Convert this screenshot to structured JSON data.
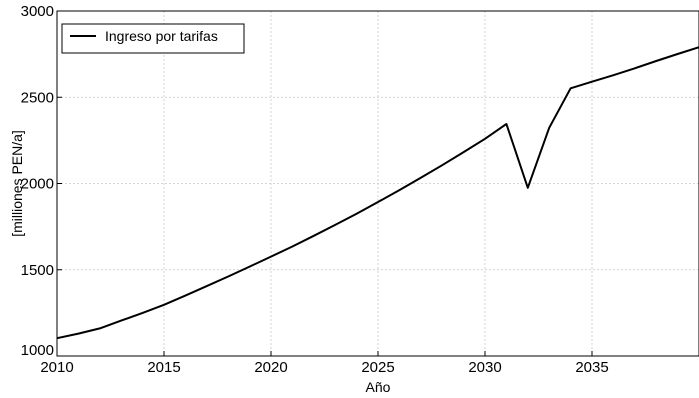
{
  "chart_data": {
    "type": "line",
    "title": "",
    "xlabel": "Año",
    "ylabel": "[milliones PEN/a]",
    "xlim": [
      2010,
      2040
    ],
    "ylim": [
      1000,
      3000
    ],
    "x_ticks": [
      2010,
      2015,
      2020,
      2025,
      2030,
      2035
    ],
    "y_ticks": [
      1000,
      1500,
      2000,
      2500,
      3000
    ],
    "grid": true,
    "legend_position": "top-left",
    "series": [
      {
        "name": "Ingreso por tarifas",
        "color": "#000000",
        "x": [
          2010,
          2011,
          2012,
          2013,
          2014,
          2015,
          2016,
          2017,
          2018,
          2019,
          2020,
          2021,
          2022,
          2023,
          2024,
          2025,
          2026,
          2027,
          2028,
          2029,
          2030,
          2031,
          2032,
          2033,
          2034,
          2035,
          2036,
          2037,
          2038,
          2039,
          2040
        ],
        "y": [
          1103,
          1130,
          1160,
          1205,
          1250,
          1297,
          1350,
          1405,
          1461,
          1518,
          1576,
          1635,
          1697,
          1760,
          1825,
          1893,
          1962,
          2033,
          2106,
          2182,
          2259,
          2345,
          1975,
          2323,
          2552,
          2590,
          2628,
          2668,
          2710,
          2751,
          2790
        ]
      }
    ]
  }
}
